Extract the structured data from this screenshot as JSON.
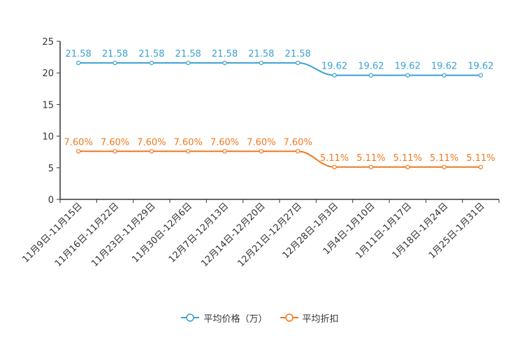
{
  "chart_data": {
    "type": "line",
    "categories": [
      "11月9日-11月15日",
      "11月16日-11月22日",
      "11月23日-11月29日",
      "11月30日-12月6日",
      "12月7日-12月13日",
      "12月14日-12月20日",
      "12月21日-12月27日",
      "12月28日-1月3日",
      "1月4日-1月10日",
      "1月11日-1月17日",
      "1月18日-1月24日",
      "1月25日-1月31日"
    ],
    "series": [
      {
        "name": "平均价格（万）",
        "color": "#3ba1d0",
        "values": [
          21.58,
          21.58,
          21.58,
          21.58,
          21.58,
          21.58,
          21.58,
          19.62,
          19.62,
          19.62,
          19.62,
          19.62
        ],
        "labels": [
          "21.58",
          "21.58",
          "21.58",
          "21.58",
          "21.58",
          "21.58",
          "21.58",
          "19.62",
          "19.62",
          "19.62",
          "19.62",
          "19.62"
        ]
      },
      {
        "name": "平均折扣",
        "color": "#f0781e",
        "values": [
          7.6,
          7.6,
          7.6,
          7.6,
          7.6,
          7.6,
          7.6,
          5.11,
          5.11,
          5.11,
          5.11,
          5.11
        ],
        "labels": [
          "7.60%",
          "7.60%",
          "7.60%",
          "7.60%",
          "7.60%",
          "7.60%",
          "7.60%",
          "5.11%",
          "5.11%",
          "5.11%",
          "5.11%",
          "5.11%"
        ]
      }
    ],
    "ylim": [
      0,
      25
    ],
    "yticks": [
      0,
      5,
      10,
      15,
      20,
      25
    ],
    "ytick_labels": [
      "0",
      "5",
      "10",
      "15",
      "20",
      "25"
    ],
    "legend_position": "bottom-center",
    "grid": false,
    "title": "",
    "xlabel": "",
    "ylabel": ""
  }
}
